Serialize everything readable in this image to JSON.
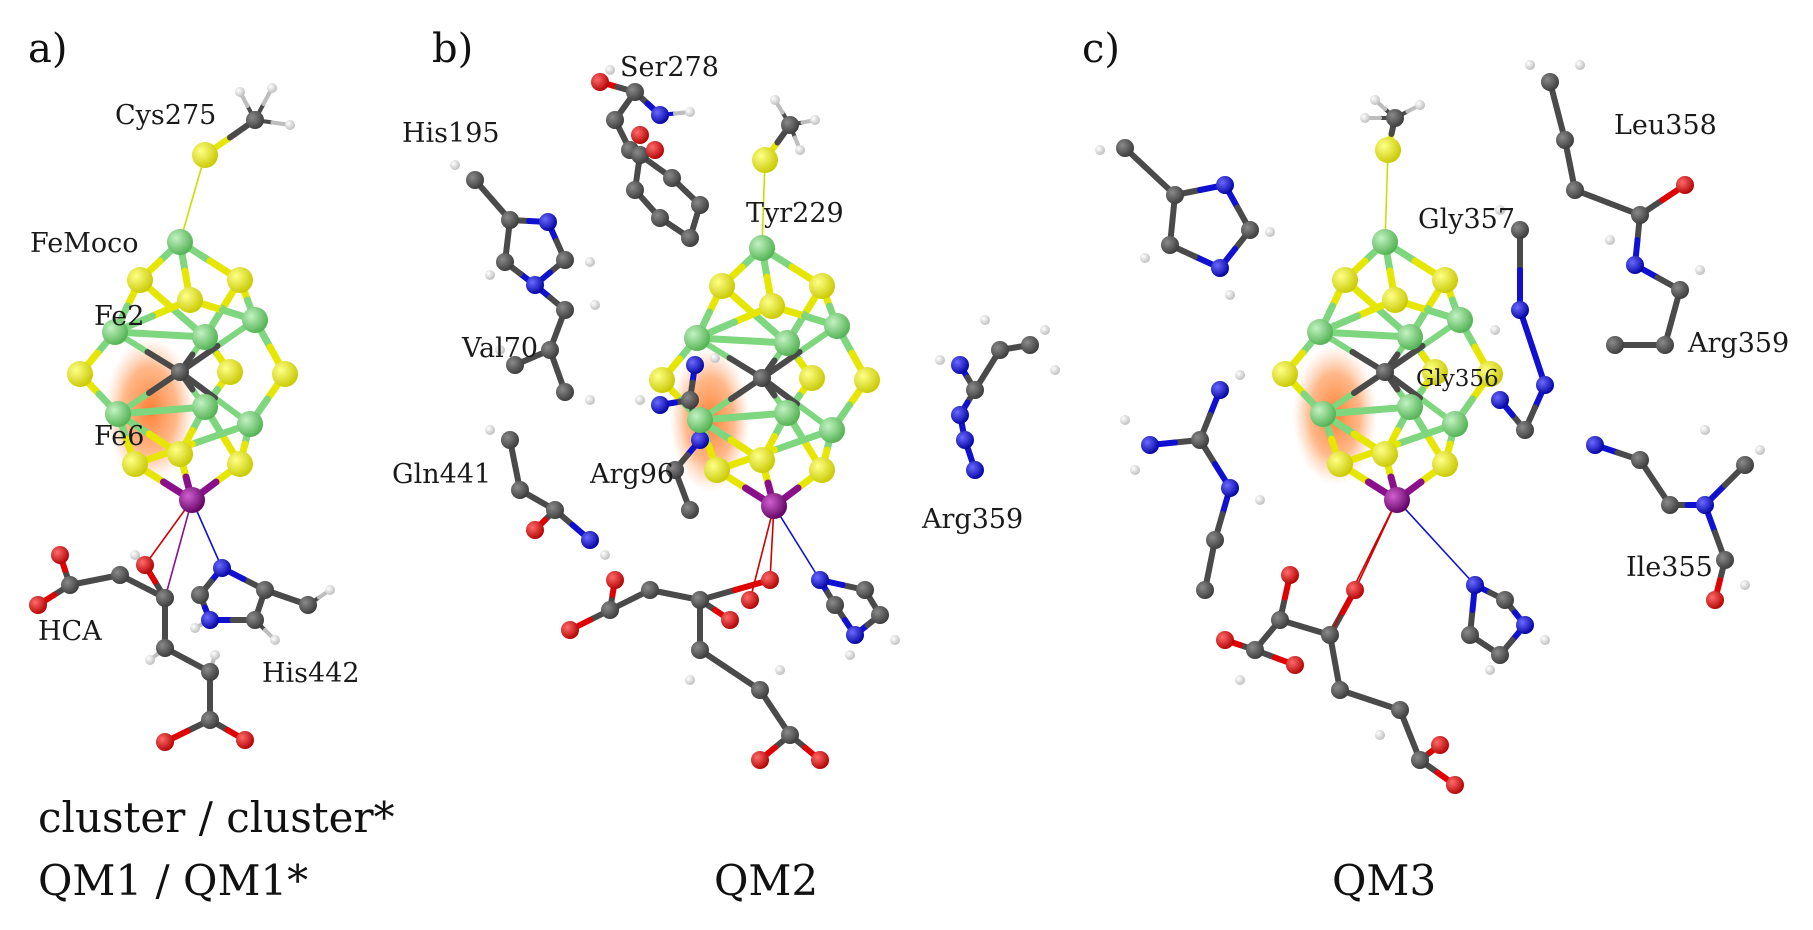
{
  "panels": [
    {
      "letter": "a)",
      "caption_lines": [
        "cluster / cluster*",
        "QM1 / QM1*"
      ],
      "labels": [
        "Cys275",
        "FeMoco",
        "Fe2",
        "Fe6",
        "HCA",
        "His442"
      ]
    },
    {
      "letter": "b)",
      "caption_lines": [
        "QM2"
      ],
      "labels": [
        "Ser278",
        "His195",
        "Tyr229",
        "Val70",
        "Gln441",
        "Arg96",
        "Arg359"
      ]
    },
    {
      "letter": "c)",
      "caption_lines": [
        "QM3"
      ],
      "labels": [
        "Leu358",
        "Gly357",
        "Arg359",
        "Gly356",
        "Ile355"
      ]
    }
  ],
  "colors": {
    "carbon": "#4a4a4a",
    "hydrogen": "#f2f2f2",
    "oxygen": "#e00000",
    "nitrogen": "#1010d0",
    "sulfur": "#e6e600",
    "iron": "#7ed67e",
    "molybdenum": "#8a0f8a",
    "highlight": "#ff8a3d"
  }
}
